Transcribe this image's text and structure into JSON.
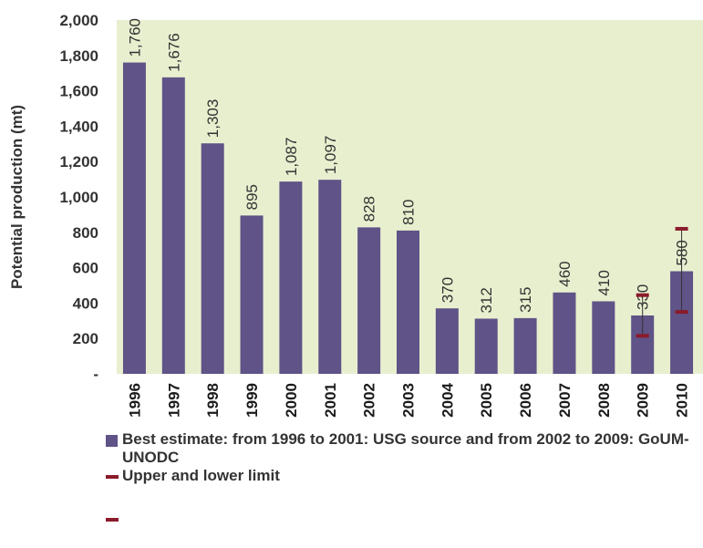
{
  "chart_data": {
    "type": "bar",
    "categories": [
      "1996",
      "1997",
      "1998",
      "1999",
      "2000",
      "2001",
      "2002",
      "2003",
      "2004",
      "2005",
      "2006",
      "2007",
      "2008",
      "2009",
      "2010"
    ],
    "series": [
      {
        "name": "Best estimate: from 1996 to 2001: USG source and from 2002 to 2009: GoUM-UNODC",
        "values": [
          1760,
          1676,
          1303,
          895,
          1087,
          1097,
          828,
          810,
          370,
          312,
          315,
          460,
          410,
          330,
          580
        ]
      }
    ],
    "value_labels": [
      "1,760",
      "1,676",
      "1,303",
      "895",
      "1,087",
      "1,097",
      "828",
      "810",
      "370",
      "312",
      "315",
      "460",
      "410",
      "330",
      "580"
    ],
    "ranges": [
      {
        "category": "2009",
        "lower": 215,
        "upper": 445
      },
      {
        "category": "2010",
        "lower": 350,
        "upper": 820
      }
    ],
    "range_legend": "Upper and lower limit",
    "ylabel": "Potential production (mt)",
    "ylim": [
      0,
      2000
    ],
    "yticks": [
      0,
      200,
      400,
      600,
      800,
      1000,
      1200,
      1400,
      1600,
      1800,
      2000
    ],
    "ytick_labels": [
      "-",
      "200",
      "400",
      "600",
      "800",
      "1,000",
      "1,200",
      "1,400",
      "1,600",
      "1,800",
      "2,000"
    ],
    "grid": false,
    "legend_position": "bottom",
    "colors": {
      "plot_background": "#e8efcf",
      "bar": "#5f5387",
      "range": "#8b1a2a",
      "text": "#333333"
    }
  }
}
